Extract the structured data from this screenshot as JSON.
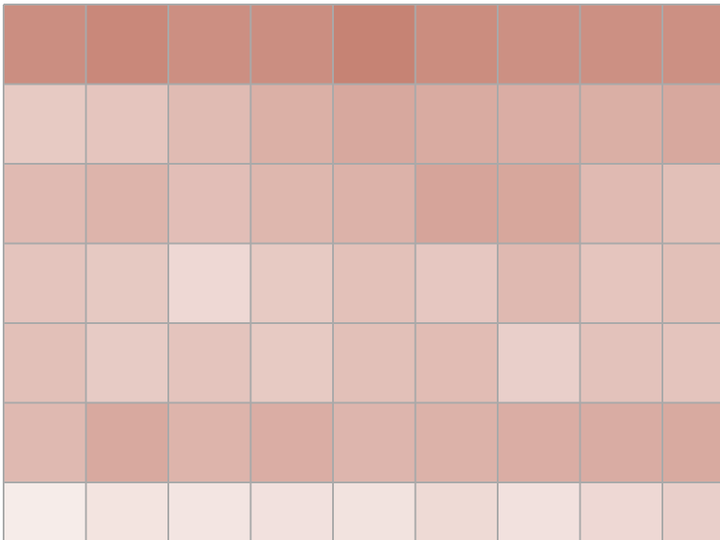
{
  "chart_data": {
    "type": "heatmap",
    "color_scale": {
      "low": "#f8efed",
      "high": "#c47e6f"
    },
    "grid_color": "#a9a9a9",
    "values": [
      [
        0.86,
        0.91,
        0.85,
        0.86,
        0.96,
        0.87,
        0.84,
        0.84,
        0.84
      ],
      [
        0.33,
        0.37,
        0.46,
        0.56,
        0.63,
        0.6,
        0.58,
        0.57,
        0.63
      ],
      [
        0.47,
        0.52,
        0.43,
        0.5,
        0.54,
        0.66,
        0.64,
        0.47,
        0.42
      ],
      [
        0.38,
        0.34,
        0.2,
        0.33,
        0.41,
        0.35,
        0.48,
        0.37,
        0.42
      ],
      [
        0.42,
        0.32,
        0.38,
        0.33,
        0.42,
        0.45,
        0.28,
        0.4,
        0.38
      ],
      [
        0.48,
        0.62,
        0.52,
        0.58,
        0.51,
        0.54,
        0.58,
        0.59,
        0.61
      ],
      [
        0.03,
        0.1,
        0.09,
        0.12,
        0.11,
        0.19,
        0.12,
        0.2,
        0.28
      ]
    ]
  }
}
